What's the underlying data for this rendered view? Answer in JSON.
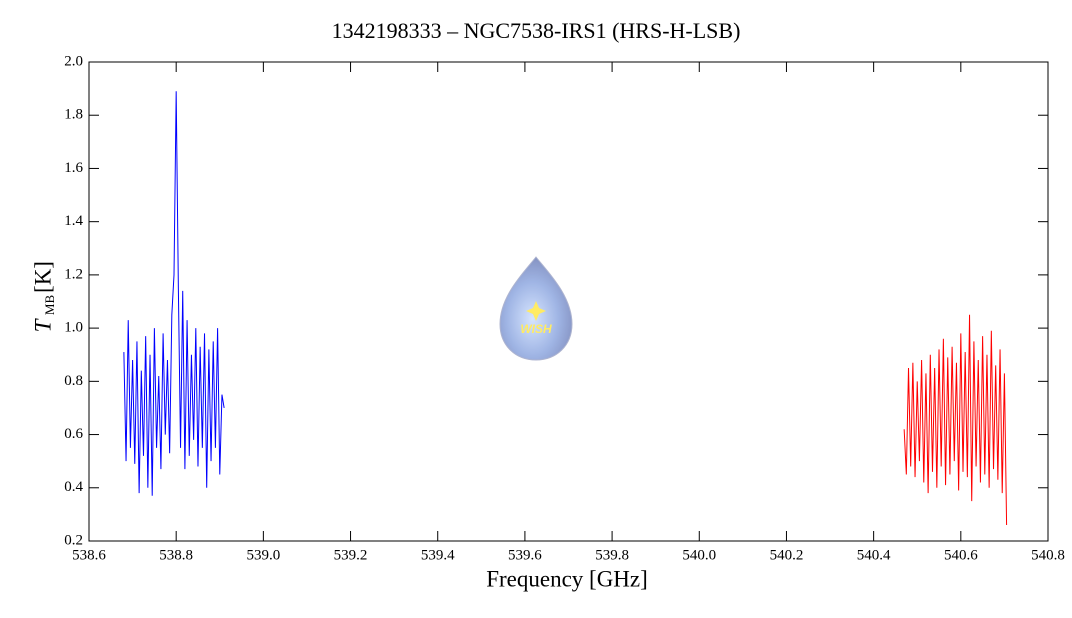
{
  "chart_data": {
    "type": "line",
    "title": "1342198333 – NGC7538-IRS1 (HRS-H-LSB)",
    "xlabel": "Frequency [GHz]",
    "ylabel": {
      "symbol": "T",
      "subscript": "MB",
      "unit": "[K]"
    },
    "watermark": "WISH",
    "xlim": [
      538.6,
      540.8
    ],
    "xticks": [
      538.6,
      538.8,
      {
        "value": 539,
        "label": "539.0"
      },
      539.2,
      539.4,
      539.6,
      539.8,
      {
        "value": 540,
        "label": "540.0"
      },
      540.2,
      540.4,
      540.6,
      540.8
    ],
    "ylim": [
      0.2,
      2.0
    ],
    "yticks": [
      0.2,
      0.4,
      0.6,
      0.8,
      {
        "value": 1,
        "label": "1.0"
      },
      1.2,
      1.4,
      1.6,
      1.8,
      {
        "value": 2,
        "label": "2.0"
      }
    ],
    "series": [
      {
        "color": "#0000ff",
        "x": [
          538.68,
          538.685,
          538.69,
          538.695,
          538.7,
          538.705,
          538.71,
          538.715,
          538.72,
          538.725,
          538.73,
          538.735,
          538.74,
          538.745,
          538.75,
          538.755,
          538.76,
          538.765,
          538.77,
          538.775,
          538.78,
          538.785,
          538.79,
          538.795,
          538.8,
          538.805,
          538.81,
          538.815,
          538.82,
          538.825,
          538.83,
          538.835,
          538.84,
          538.845,
          538.85,
          538.855,
          538.86,
          538.865,
          538.87,
          538.875,
          538.88,
          538.885,
          538.89,
          538.895,
          538.9,
          538.905,
          538.91
        ],
        "values": [
          0.91,
          0.5,
          1.03,
          0.55,
          0.88,
          0.49,
          0.95,
          0.38,
          0.84,
          0.52,
          0.97,
          0.4,
          0.9,
          0.37,
          1.0,
          0.55,
          0.82,
          0.47,
          0.98,
          0.6,
          0.88,
          0.53,
          1.05,
          1.2,
          1.89,
          1.15,
          0.55,
          1.14,
          0.47,
          1.03,
          0.52,
          0.9,
          0.58,
          1.0,
          0.48,
          0.93,
          0.55,
          0.98,
          0.4,
          0.92,
          0.5,
          0.95,
          0.55,
          1.0,
          0.45,
          0.75,
          0.7
        ]
      },
      {
        "color": "#ff0000",
        "x": [
          540.47,
          540.475,
          540.48,
          540.485,
          540.49,
          540.495,
          540.5,
          540.505,
          540.51,
          540.515,
          540.52,
          540.525,
          540.53,
          540.535,
          540.54,
          540.545,
          540.55,
          540.555,
          540.56,
          540.565,
          540.57,
          540.575,
          540.58,
          540.585,
          540.59,
          540.595,
          540.6,
          540.605,
          540.61,
          540.615,
          540.62,
          540.625,
          540.63,
          540.635,
          540.64,
          540.645,
          540.65,
          540.655,
          540.66,
          540.665,
          540.67,
          540.675,
          540.68,
          540.685,
          540.69,
          540.695,
          540.7,
          540.705
        ],
        "values": [
          0.62,
          0.45,
          0.85,
          0.48,
          0.87,
          0.44,
          0.8,
          0.5,
          0.88,
          0.42,
          0.83,
          0.38,
          0.9,
          0.46,
          0.85,
          0.4,
          0.92,
          0.48,
          0.96,
          0.41,
          0.89,
          0.45,
          0.93,
          0.5,
          0.87,
          0.39,
          0.98,
          0.46,
          0.91,
          0.44,
          1.05,
          0.35,
          0.95,
          0.48,
          0.88,
          0.42,
          0.97,
          0.45,
          0.9,
          0.4,
          0.99,
          0.47,
          0.86,
          0.43,
          0.92,
          0.38,
          0.83,
          0.26
        ]
      }
    ]
  }
}
